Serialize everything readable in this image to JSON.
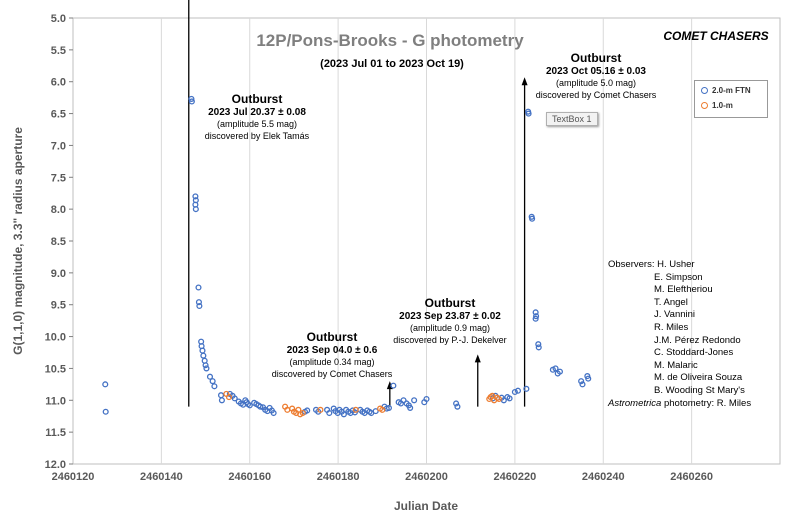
{
  "chart_data": {
    "type": "scatter",
    "title": "12P/Pons-Brooks  -  G photometry",
    "subtitle": "(2023 Jul 01 to 2023 Oct 19)",
    "corner_label": "COMET CHASERS",
    "xlabel": "Julian Date",
    "ylabel": "G(1,1,0) magnitude,    3.3\" radius aperture",
    "xlim": [
      2460120,
      2460280
    ],
    "ylim": [
      5.0,
      12.0
    ],
    "y_inverted": true,
    "x_ticks": [
      "2460120",
      "2460140",
      "2460160",
      "2460180",
      "2460200",
      "2460220",
      "2460240",
      "2460260"
    ],
    "y_ticks": [
      "5.0",
      "5.5",
      "6.0",
      "6.5",
      "7.0",
      "7.5",
      "8.0",
      "8.5",
      "9.0",
      "9.5",
      "10.0",
      "10.5",
      "11.0",
      "11.5",
      "12.0"
    ],
    "grid": "vertical-major",
    "legend_position": "top-right",
    "series": [
      {
        "name": "2.0-m FTN",
        "color": "#4472c4",
        "points": [
          [
            2460127.3,
            10.75
          ],
          [
            2460127.4,
            11.18
          ],
          [
            2460146.8,
            6.27
          ],
          [
            2460146.9,
            6.31
          ],
          [
            2460147.7,
            7.8
          ],
          [
            2460147.8,
            7.86
          ],
          [
            2460147.7,
            7.93
          ],
          [
            2460147.8,
            8.0
          ],
          [
            2460148.4,
            9.23
          ],
          [
            2460148.5,
            9.46
          ],
          [
            2460148.6,
            9.52
          ],
          [
            2460149.0,
            10.08
          ],
          [
            2460149.1,
            10.15
          ],
          [
            2460149.3,
            10.22
          ],
          [
            2460149.5,
            10.3
          ],
          [
            2460149.8,
            10.38
          ],
          [
            2460150.0,
            10.45
          ],
          [
            2460150.2,
            10.5
          ],
          [
            2460151.0,
            10.63
          ],
          [
            2460151.6,
            10.7
          ],
          [
            2460152.0,
            10.78
          ],
          [
            2460153.5,
            10.92
          ],
          [
            2460153.7,
            11.0
          ],
          [
            2460155.5,
            10.9
          ],
          [
            2460156.1,
            10.93
          ],
          [
            2460156.6,
            10.97
          ],
          [
            2460157.5,
            11.02
          ],
          [
            2460158.0,
            11.05
          ],
          [
            2460158.5,
            11.07
          ],
          [
            2460159.0,
            11.0
          ],
          [
            2460159.3,
            11.03
          ],
          [
            2460159.6,
            11.06
          ],
          [
            2460160.0,
            11.08
          ],
          [
            2460161.0,
            11.04
          ],
          [
            2460161.5,
            11.06
          ],
          [
            2460162.0,
            11.08
          ],
          [
            2460162.4,
            11.1
          ],
          [
            2460163.0,
            11.11
          ],
          [
            2460163.5,
            11.15
          ],
          [
            2460164.0,
            11.17
          ],
          [
            2460164.5,
            11.12
          ],
          [
            2460165.0,
            11.16
          ],
          [
            2460165.4,
            11.2
          ],
          [
            2460172.5,
            11.18
          ],
          [
            2460173.0,
            11.16
          ],
          [
            2460175.0,
            11.15
          ],
          [
            2460175.5,
            11.18
          ],
          [
            2460177.5,
            11.15
          ],
          [
            2460178.0,
            11.2
          ],
          [
            2460179.0,
            11.13
          ],
          [
            2460179.4,
            11.17
          ],
          [
            2460179.9,
            11.2
          ],
          [
            2460180.3,
            11.15
          ],
          [
            2460180.8,
            11.18
          ],
          [
            2460181.3,
            11.22
          ],
          [
            2460181.8,
            11.15
          ],
          [
            2460182.3,
            11.18
          ],
          [
            2460182.8,
            11.2
          ],
          [
            2460183.3,
            11.16
          ],
          [
            2460183.8,
            11.19
          ],
          [
            2460185.0,
            11.15
          ],
          [
            2460185.5,
            11.18
          ],
          [
            2460186.0,
            11.2
          ],
          [
            2460186.6,
            11.16
          ],
          [
            2460187.1,
            11.18
          ],
          [
            2460187.5,
            11.2
          ],
          [
            2460188.5,
            11.17
          ],
          [
            2460190.5,
            11.1
          ],
          [
            2460191.0,
            11.13
          ],
          [
            2460191.5,
            11.12
          ],
          [
            2460192.5,
            10.77
          ],
          [
            2460193.7,
            11.03
          ],
          [
            2460194.2,
            11.05
          ],
          [
            2460194.8,
            11.0
          ],
          [
            2460195.5,
            11.05
          ],
          [
            2460196.0,
            11.08
          ],
          [
            2460196.3,
            11.12
          ],
          [
            2460197.2,
            11.0
          ],
          [
            2460199.5,
            11.03
          ],
          [
            2460200.0,
            10.98
          ],
          [
            2460206.7,
            11.05
          ],
          [
            2460207.0,
            11.1
          ],
          [
            2460215.0,
            10.97
          ],
          [
            2460215.6,
            10.93
          ],
          [
            2460217.0,
            10.96
          ],
          [
            2460217.5,
            11.0
          ],
          [
            2460218.3,
            10.95
          ],
          [
            2460218.8,
            10.97
          ],
          [
            2460220.0,
            10.87
          ],
          [
            2460220.7,
            10.85
          ],
          [
            2460222.6,
            10.82
          ],
          [
            2460223.0,
            6.47
          ],
          [
            2460223.1,
            6.5
          ],
          [
            2460223.8,
            8.12
          ],
          [
            2460223.9,
            8.15
          ],
          [
            2460224.7,
            9.62
          ],
          [
            2460224.8,
            9.68
          ],
          [
            2460224.7,
            9.72
          ],
          [
            2460225.3,
            10.12
          ],
          [
            2460225.4,
            10.17
          ],
          [
            2460228.6,
            10.52
          ],
          [
            2460229.2,
            10.5
          ],
          [
            2460229.7,
            10.58
          ],
          [
            2460230.2,
            10.55
          ],
          [
            2460235.0,
            10.7
          ],
          [
            2460235.3,
            10.75
          ],
          [
            2460236.4,
            10.62
          ],
          [
            2460236.6,
            10.66
          ]
        ]
      },
      {
        "name": "1.0-m",
        "color": "#ed7d31",
        "points": [
          [
            2460154.7,
            10.9
          ],
          [
            2460155.3,
            10.95
          ],
          [
            2460168.0,
            11.1
          ],
          [
            2460168.5,
            11.15
          ],
          [
            2460169.6,
            11.13
          ],
          [
            2460170.0,
            11.18
          ],
          [
            2460170.5,
            11.2
          ],
          [
            2460171.0,
            11.15
          ],
          [
            2460171.4,
            11.22
          ],
          [
            2460172.0,
            11.2
          ],
          [
            2460176.0,
            11.15
          ],
          [
            2460184.0,
            11.15
          ],
          [
            2460189.5,
            11.13
          ],
          [
            2460190.0,
            11.15
          ],
          [
            2460214.2,
            10.98
          ],
          [
            2460214.5,
            10.95
          ],
          [
            2460214.9,
            10.93
          ],
          [
            2460215.3,
            11.0
          ],
          [
            2460216.0,
            10.96
          ],
          [
            2460216.4,
            10.98
          ]
        ]
      }
    ],
    "annotations": [
      {
        "arrow": {
          "x": 2460146.2,
          "y_from": 11.1,
          "y_to": 4.55
        },
        "title": "Outburst",
        "lines": [
          "2023 Jul 20.37 ± 0.08",
          "(amplitude 5.5 mag)",
          "discovered by Elek Tamás"
        ]
      },
      {
        "arrow": {
          "x": 2460191.7,
          "y_from": 11.1,
          "y_to": 10.7
        },
        "title": "Outburst",
        "lines": [
          "2023 Sep 04.0 ± 0.6",
          "(amplitude 0.34 mag)",
          "discovered by Comet Chasers"
        ]
      },
      {
        "arrow": {
          "x": 2460211.6,
          "y_from": 11.1,
          "y_to": 10.28
        },
        "title": "Outburst",
        "lines": [
          "2023 Sep 23.87 ± 0.02",
          "(amplitude 0.9 mag)",
          "discovered by P.-J. Dekelver"
        ]
      },
      {
        "arrow": {
          "x": 2460222.2,
          "y_from": 11.1,
          "y_to": 5.93
        },
        "title": "Outburst",
        "lines": [
          "2023 Oct 05.16 ± 0.03",
          "(amplitude 5.0 mag)",
          "discovered by Comet Chasers"
        ]
      }
    ]
  },
  "textbox_label": "TextBox 1",
  "observers": {
    "first": "Observers: H. Usher",
    "names": [
      "E. Simpson",
      "M. Eleftheriou",
      "T. Angel",
      "J. Vannini",
      "R. Miles",
      "J.M. Pérez Redondo",
      "C. Stoddard-Jones",
      "M. Malaric",
      "M. de Oliveira Souza",
      "B. Wooding St Mary's"
    ],
    "last_italic": "Astrometrica",
    "last_rest": " photometry: R. Miles"
  }
}
